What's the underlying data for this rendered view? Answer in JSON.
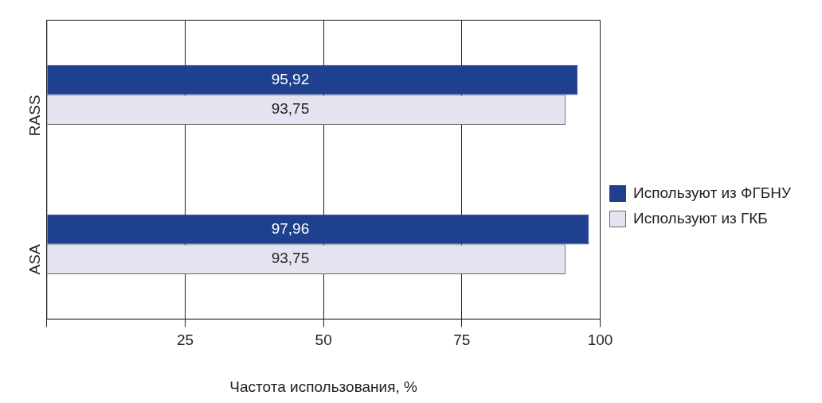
{
  "chart_data": {
    "type": "bar",
    "orientation": "horizontal",
    "xlabel": "Частота использования, %",
    "categories": [
      "RASS",
      "ASA"
    ],
    "series": [
      {
        "name": "Используют из ФГБНУ",
        "color": "#1f3f8f",
        "values": [
          95.92,
          97.96
        ],
        "value_labels": [
          "95,92",
          "97,96"
        ]
      },
      {
        "name": "Используют из ГКБ",
        "color": "#e4e4f0",
        "values": [
          93.75,
          93.75
        ],
        "value_labels": [
          "93,75",
          "93,75"
        ]
      }
    ],
    "xlim": [
      0,
      100
    ],
    "xticks": [
      {
        "value": 0,
        "label": null
      },
      25,
      50,
      75,
      100
    ],
    "grid": "x",
    "legend": "right"
  }
}
